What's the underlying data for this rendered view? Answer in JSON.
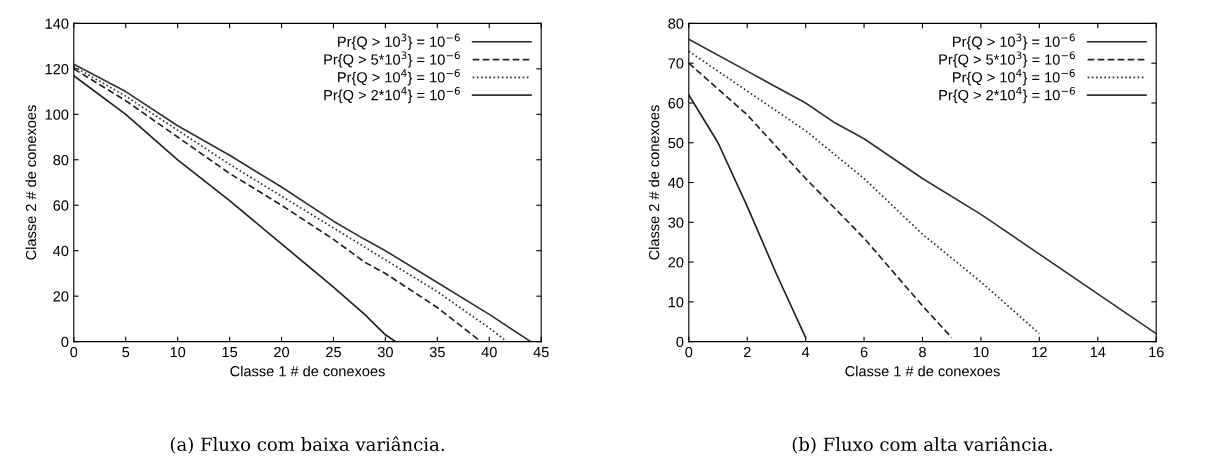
{
  "chart_data": [
    {
      "type": "line",
      "xlabel": "Classe 1 # de conexoes",
      "ylabel": "Classe 2 # de conexoes",
      "xlim": [
        0,
        45
      ],
      "ylim": [
        0,
        140
      ],
      "xticks": [
        0,
        5,
        10,
        15,
        20,
        25,
        30,
        35,
        40,
        45
      ],
      "yticks": [
        0,
        20,
        40,
        60,
        80,
        100,
        120,
        140
      ],
      "grid": false,
      "legend": "top right",
      "marker": "none",
      "annotations": [
        "(a) Fluxo com baixa variância."
      ],
      "series": [
        {
          "name": "Pr{Q > 10$^{3}$} = 10$^{−6}$",
          "color": "#222222",
          "line_style": "solid",
          "x": [
            0,
            5,
            10,
            15,
            20,
            25,
            28,
            30,
            31
          ],
          "values": [
            117,
            100,
            80,
            62,
            43,
            24,
            12,
            3,
            0
          ]
        },
        {
          "name": "Pr{Q > 5*10$^{3}$} = 10$^{−6}$",
          "color": "#222222",
          "line_style": "dashed",
          "x": [
            0,
            5,
            10,
            15,
            20,
            25,
            28,
            30,
            35,
            39.2
          ],
          "values": [
            120,
            106,
            90,
            74,
            60,
            45,
            35,
            30,
            15,
            0
          ]
        },
        {
          "name": "Pr{Q > 10$^{4}$} = 10$^{−6}$",
          "color": "#333333",
          "line_style": "dotted",
          "x": [
            0,
            5,
            10,
            15,
            20,
            25,
            30,
            35,
            40,
            41.7
          ],
          "values": [
            121,
            108,
            93,
            78,
            64,
            50,
            36,
            22,
            6,
            0
          ]
        },
        {
          "name": "Pr{Q > 2*10$^{4}$} = 10$^{−6}$",
          "color": "#333333",
          "line_style": "solid",
          "x": [
            0,
            5,
            10,
            15,
            20,
            25,
            28,
            30,
            35,
            40,
            44
          ],
          "values": [
            122,
            110,
            95,
            82,
            68,
            53,
            45,
            40,
            26,
            12,
            0
          ]
        }
      ]
    },
    {
      "type": "line",
      "xlabel": "Classe 1 # de conexoes",
      "ylabel": "Classe 2 # de conexoes",
      "xlim": [
        0,
        16
      ],
      "ylim": [
        0,
        80
      ],
      "xticks": [
        0,
        2,
        4,
        6,
        8,
        10,
        12,
        14,
        16
      ],
      "yticks": [
        0,
        10,
        20,
        30,
        40,
        50,
        60,
        70,
        80
      ],
      "grid": false,
      "legend": "top right",
      "marker": "none",
      "annotations": [
        "(b) Fluxo com alta variância."
      ],
      "series": [
        {
          "name": "Pr{Q > 10$^{3}$} = 10$^{−6}$",
          "color": "#222222",
          "line_style": "solid",
          "x": [
            0,
            1,
            2,
            3,
            4
          ],
          "values": [
            62,
            50,
            34,
            17,
            1
          ]
        },
        {
          "name": "Pr{Q > 5*10$^{3}$} = 10$^{−6}$",
          "color": "#222222",
          "line_style": "dashed",
          "x": [
            0,
            2,
            4,
            6,
            8,
            9
          ],
          "values": [
            70,
            57,
            41,
            26,
            9,
            1
          ]
        },
        {
          "name": "Pr{Q > 10$^{4}$} = 10$^{−6}$",
          "color": "#333333",
          "line_style": "dotted",
          "x": [
            0,
            2,
            4,
            6,
            8,
            10,
            12
          ],
          "values": [
            73,
            63,
            53,
            41,
            27,
            15,
            2
          ]
        },
        {
          "name": "Pr{Q > 2*10$^{4}$} = 10$^{−6}$",
          "color": "#333333",
          "line_style": "solid",
          "x": [
            0,
            2,
            4,
            5,
            6,
            8,
            10,
            12,
            14,
            16
          ],
          "values": [
            76,
            68,
            60,
            55,
            51,
            41,
            32,
            22,
            12,
            2
          ]
        }
      ]
    }
  ]
}
